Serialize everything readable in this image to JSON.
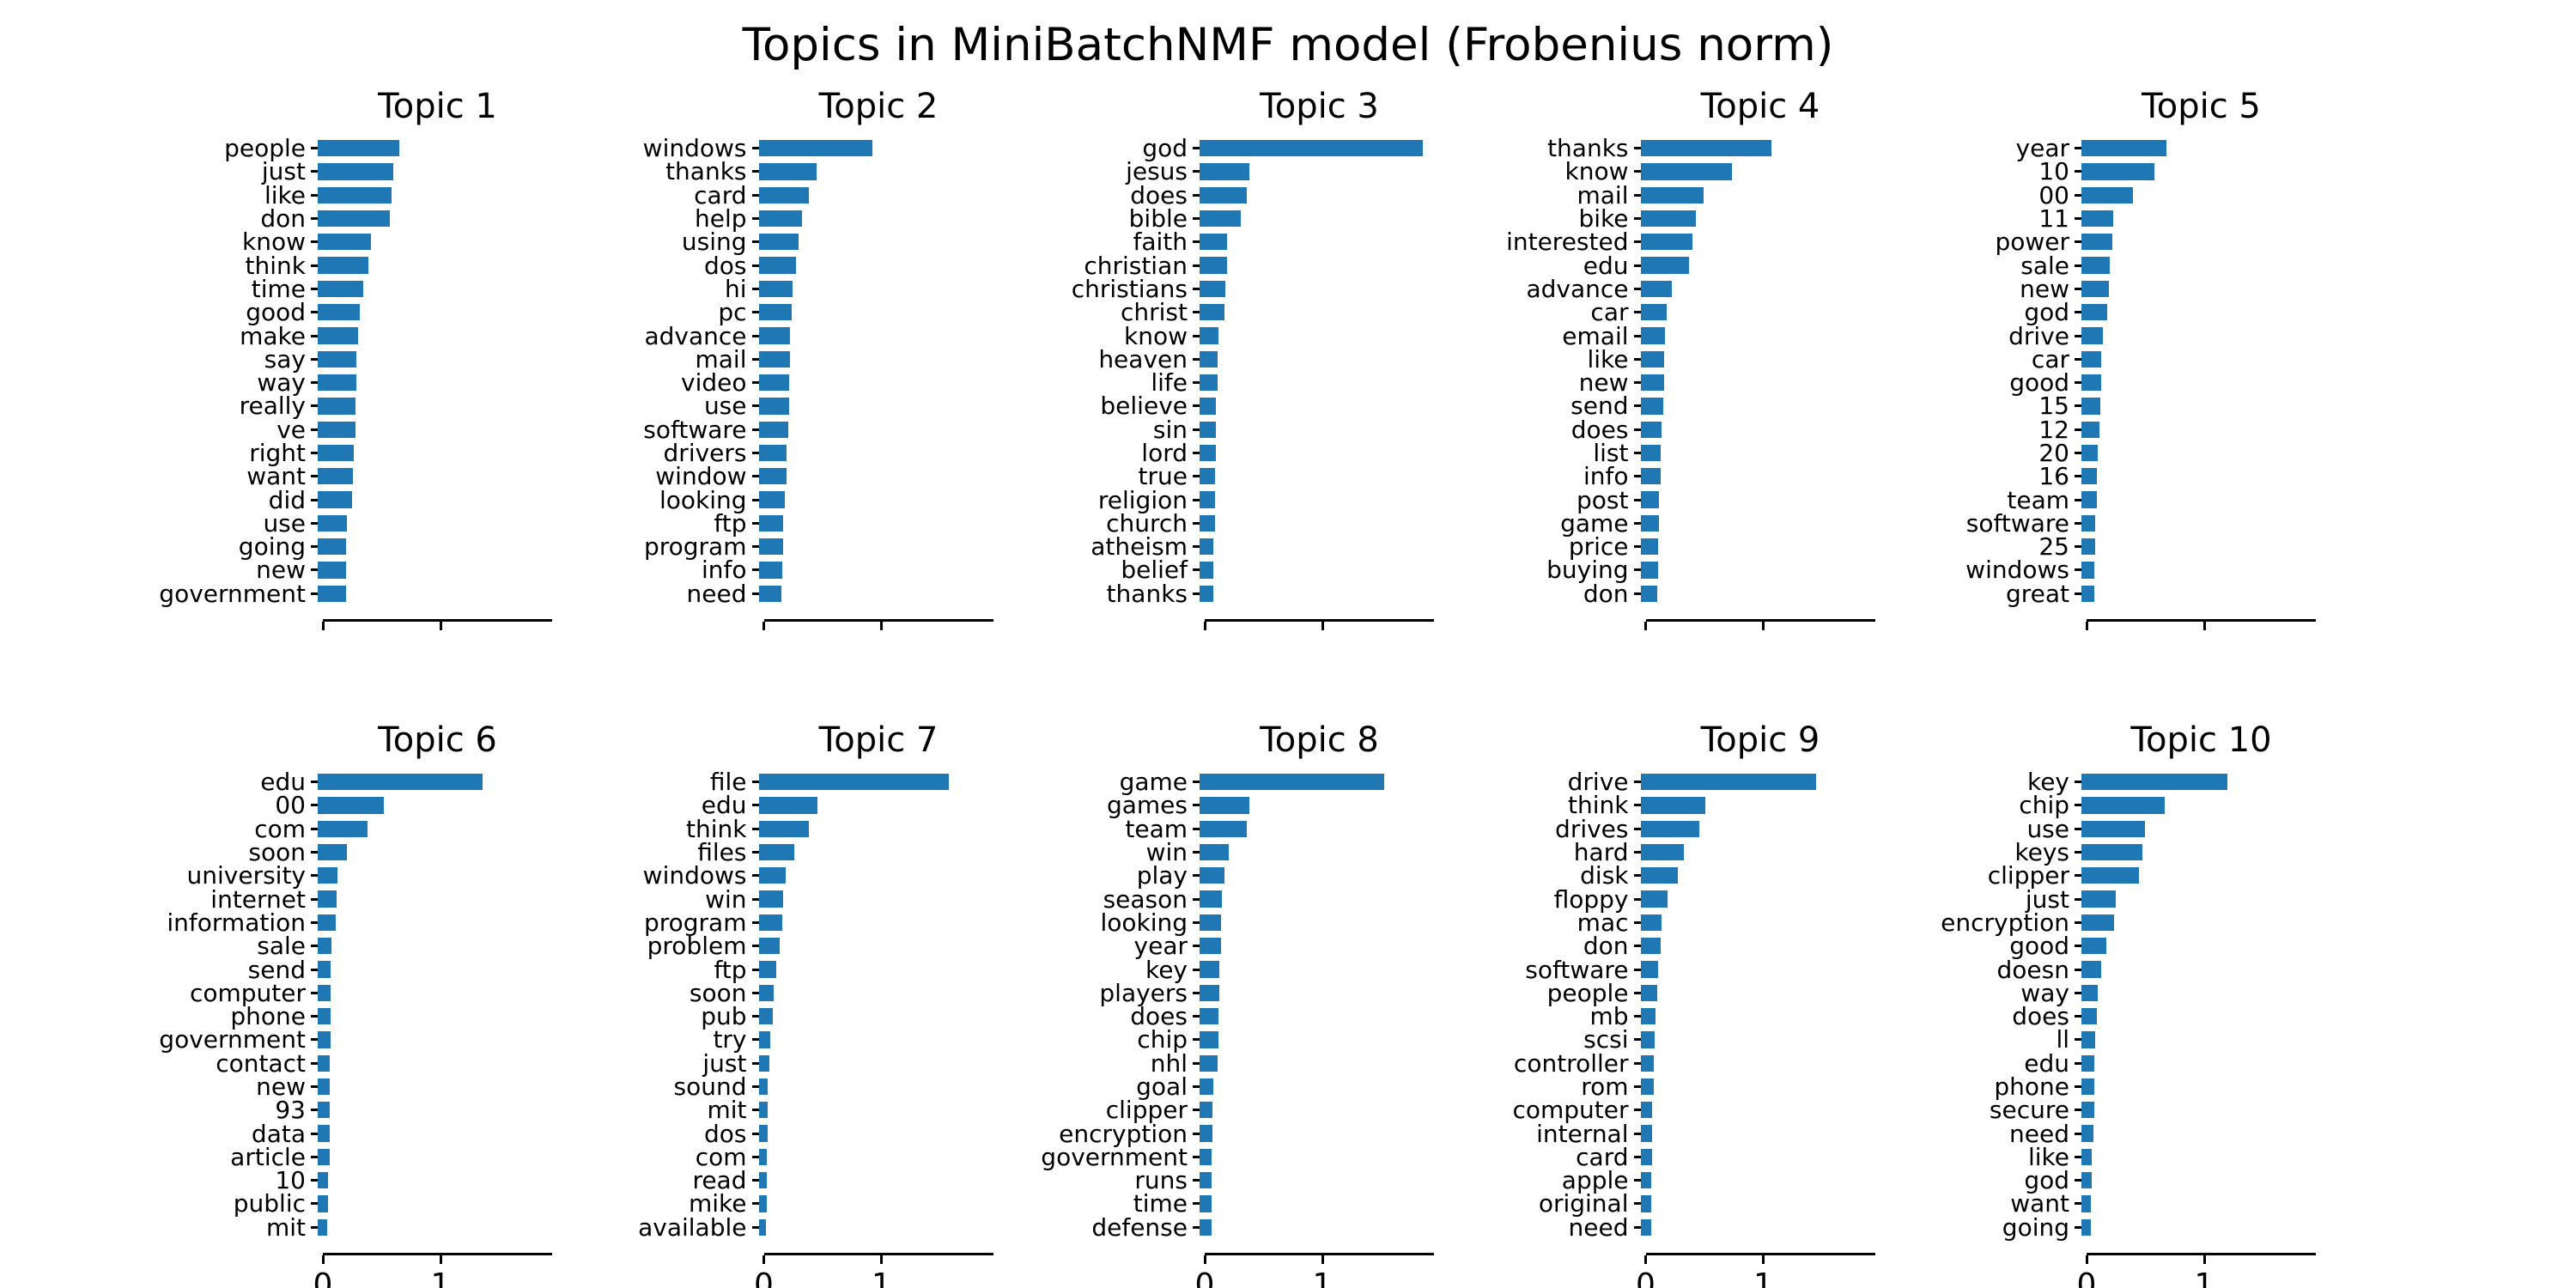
{
  "suptitle": "Topics in MiniBatchNMF model (Frobenius norm)",
  "colors": {
    "bar": "#1f77b4",
    "axis": "#000000",
    "text": "#000000",
    "background": "#ffffff"
  },
  "axis": {
    "tick_labels": [
      "0",
      "1"
    ],
    "tick_values": [
      0,
      1
    ],
    "xlim": [
      0,
      1.95
    ]
  },
  "chart_data": [
    {
      "type": "bar",
      "orientation": "horizontal",
      "title": "Topic 1",
      "xlim": [
        0,
        1.95
      ],
      "categories": [
        "people",
        "just",
        "like",
        "don",
        "know",
        "think",
        "time",
        "good",
        "make",
        "say",
        "way",
        "really",
        "ve",
        "right",
        "want",
        "did",
        "use",
        "going",
        "new",
        "government"
      ],
      "values": [
        0.69,
        0.64,
        0.63,
        0.61,
        0.45,
        0.43,
        0.39,
        0.36,
        0.34,
        0.33,
        0.33,
        0.32,
        0.32,
        0.31,
        0.3,
        0.29,
        0.25,
        0.24,
        0.24,
        0.24
      ]
    },
    {
      "type": "bar",
      "orientation": "horizontal",
      "title": "Topic 2",
      "xlim": [
        0,
        1.95
      ],
      "categories": [
        "windows",
        "thanks",
        "card",
        "help",
        "using",
        "dos",
        "hi",
        "pc",
        "advance",
        "mail",
        "video",
        "use",
        "software",
        "drivers",
        "window",
        "looking",
        "ftp",
        "program",
        "info",
        "need"
      ],
      "values": [
        0.97,
        0.49,
        0.43,
        0.37,
        0.34,
        0.32,
        0.29,
        0.28,
        0.27,
        0.27,
        0.26,
        0.26,
        0.25,
        0.24,
        0.24,
        0.22,
        0.21,
        0.21,
        0.2,
        0.19
      ]
    },
    {
      "type": "bar",
      "orientation": "horizontal",
      "title": "Topic 3",
      "xlim": [
        0,
        1.95
      ],
      "categories": [
        "god",
        "jesus",
        "does",
        "bible",
        "faith",
        "christian",
        "christians",
        "christ",
        "know",
        "heaven",
        "life",
        "believe",
        "sin",
        "lord",
        "true",
        "religion",
        "church",
        "atheism",
        "belief",
        "thanks"
      ],
      "values": [
        1.9,
        0.42,
        0.4,
        0.35,
        0.23,
        0.23,
        0.22,
        0.21,
        0.16,
        0.15,
        0.15,
        0.14,
        0.14,
        0.14,
        0.13,
        0.13,
        0.13,
        0.12,
        0.12,
        0.12
      ]
    },
    {
      "type": "bar",
      "orientation": "horizontal",
      "title": "Topic 4",
      "xlim": [
        0,
        1.95
      ],
      "categories": [
        "thanks",
        "know",
        "mail",
        "bike",
        "interested",
        "edu",
        "advance",
        "car",
        "email",
        "like",
        "new",
        "send",
        "does",
        "list",
        "info",
        "post",
        "game",
        "price",
        "buying",
        "don"
      ],
      "values": [
        1.11,
        0.78,
        0.54,
        0.47,
        0.44,
        0.41,
        0.27,
        0.22,
        0.21,
        0.2,
        0.2,
        0.19,
        0.18,
        0.17,
        0.17,
        0.16,
        0.16,
        0.15,
        0.15,
        0.14
      ]
    },
    {
      "type": "bar",
      "orientation": "horizontal",
      "title": "Topic 5",
      "xlim": [
        0,
        1.95
      ],
      "categories": [
        "year",
        "10",
        "00",
        "11",
        "power",
        "sale",
        "new",
        "god",
        "drive",
        "car",
        "good",
        "15",
        "12",
        "20",
        "16",
        "team",
        "software",
        "25",
        "windows",
        "great"
      ],
      "values": [
        0.72,
        0.62,
        0.44,
        0.27,
        0.26,
        0.24,
        0.23,
        0.22,
        0.18,
        0.17,
        0.17,
        0.16,
        0.15,
        0.14,
        0.13,
        0.13,
        0.12,
        0.12,
        0.11,
        0.11
      ]
    },
    {
      "type": "bar",
      "orientation": "horizontal",
      "title": "Topic 6",
      "xlim": [
        0,
        1.95
      ],
      "categories": [
        "edu",
        "00",
        "com",
        "soon",
        "university",
        "internet",
        "information",
        "sale",
        "send",
        "computer",
        "phone",
        "government",
        "contact",
        "new",
        "93",
        "data",
        "article",
        "10",
        "public",
        "mit"
      ],
      "values": [
        1.4,
        0.56,
        0.42,
        0.25,
        0.17,
        0.16,
        0.15,
        0.12,
        0.11,
        0.11,
        0.11,
        0.11,
        0.1,
        0.1,
        0.1,
        0.1,
        0.1,
        0.09,
        0.09,
        0.08
      ]
    },
    {
      "type": "bar",
      "orientation": "horizontal",
      "title": "Topic 7",
      "xlim": [
        0,
        1.95
      ],
      "categories": [
        "file",
        "edu",
        "think",
        "files",
        "windows",
        "win",
        "program",
        "problem",
        "ftp",
        "soon",
        "pub",
        "try",
        "just",
        "sound",
        "mit",
        "dos",
        "com",
        "read",
        "mike",
        "available"
      ],
      "values": [
        1.62,
        0.5,
        0.43,
        0.3,
        0.23,
        0.21,
        0.2,
        0.18,
        0.15,
        0.13,
        0.12,
        0.1,
        0.09,
        0.08,
        0.08,
        0.08,
        0.07,
        0.07,
        0.07,
        0.06
      ]
    },
    {
      "type": "bar",
      "orientation": "horizontal",
      "title": "Topic 8",
      "xlim": [
        0,
        1.95
      ],
      "categories": [
        "game",
        "games",
        "team",
        "win",
        "play",
        "season",
        "looking",
        "year",
        "key",
        "players",
        "does",
        "chip",
        "nhl",
        "goal",
        "clipper",
        "encryption",
        "government",
        "runs",
        "time",
        "defense"
      ],
      "values": [
        1.57,
        0.42,
        0.4,
        0.25,
        0.21,
        0.19,
        0.18,
        0.18,
        0.17,
        0.17,
        0.16,
        0.16,
        0.15,
        0.12,
        0.11,
        0.11,
        0.1,
        0.1,
        0.1,
        0.1
      ]
    },
    {
      "type": "bar",
      "orientation": "horizontal",
      "title": "Topic 9",
      "xlim": [
        0,
        1.95
      ],
      "categories": [
        "drive",
        "think",
        "drives",
        "hard",
        "disk",
        "floppy",
        "mac",
        "don",
        "software",
        "people",
        "mb",
        "scsi",
        "controller",
        "rom",
        "computer",
        "internal",
        "card",
        "apple",
        "original",
        "need"
      ],
      "values": [
        1.49,
        0.55,
        0.5,
        0.37,
        0.32,
        0.23,
        0.18,
        0.17,
        0.15,
        0.14,
        0.13,
        0.12,
        0.11,
        0.11,
        0.1,
        0.1,
        0.1,
        0.09,
        0.09,
        0.09
      ]
    },
    {
      "type": "bar",
      "orientation": "horizontal",
      "title": "Topic 10",
      "xlim": [
        0,
        1.95
      ],
      "categories": [
        "key",
        "chip",
        "use",
        "keys",
        "clipper",
        "just",
        "encryption",
        "good",
        "doesn",
        "way",
        "does",
        "ll",
        "edu",
        "phone",
        "secure",
        "need",
        "like",
        "god",
        "want",
        "going"
      ],
      "values": [
        1.24,
        0.71,
        0.54,
        0.52,
        0.49,
        0.29,
        0.28,
        0.21,
        0.17,
        0.14,
        0.13,
        0.12,
        0.11,
        0.11,
        0.11,
        0.1,
        0.09,
        0.09,
        0.08,
        0.08
      ]
    }
  ]
}
